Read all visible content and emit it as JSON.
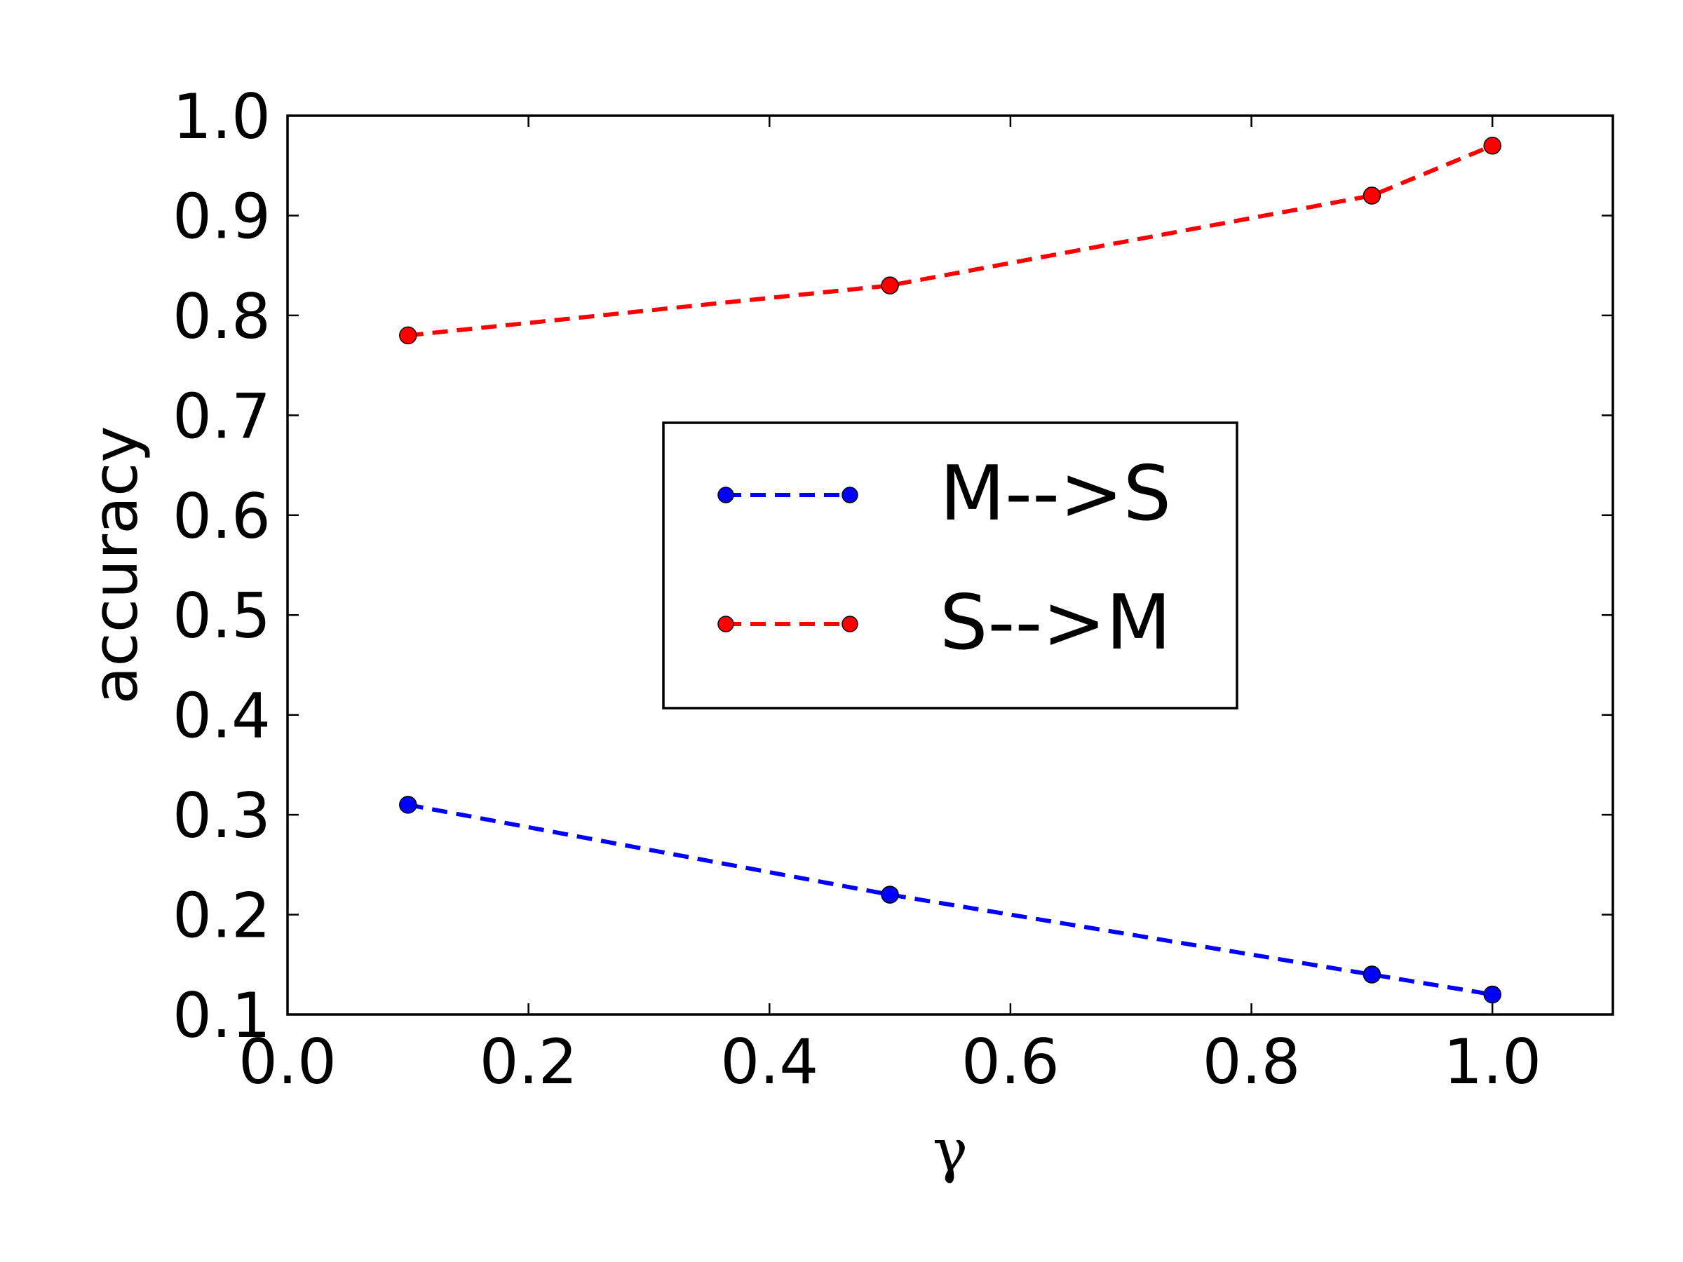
{
  "chart_data": {
    "type": "line",
    "xlabel": "γ",
    "ylabel": "accuracy",
    "xlim": [
      0.0,
      1.1
    ],
    "ylim": [
      0.1,
      1.0
    ],
    "x_ticks": [
      "0.0",
      "0.2",
      "0.4",
      "0.6",
      "0.8",
      "1.0"
    ],
    "y_ticks": [
      "0.1",
      "0.2",
      "0.3",
      "0.4",
      "0.5",
      "0.6",
      "0.7",
      "0.8",
      "0.9",
      "1.0"
    ],
    "grid": false,
    "legend_position": "center",
    "series": [
      {
        "name": "M-->S",
        "color": "#0000ff",
        "line_style": "dashed",
        "marker": "circle",
        "x": [
          0.1,
          0.5,
          0.9,
          1.0
        ],
        "y": [
          0.31,
          0.22,
          0.14,
          0.12
        ]
      },
      {
        "name": "S-->M",
        "color": "#ff0000",
        "line_style": "dashed",
        "marker": "circle",
        "x": [
          0.1,
          0.5,
          0.9,
          1.0
        ],
        "y": [
          0.78,
          0.83,
          0.92,
          0.97
        ]
      }
    ]
  }
}
